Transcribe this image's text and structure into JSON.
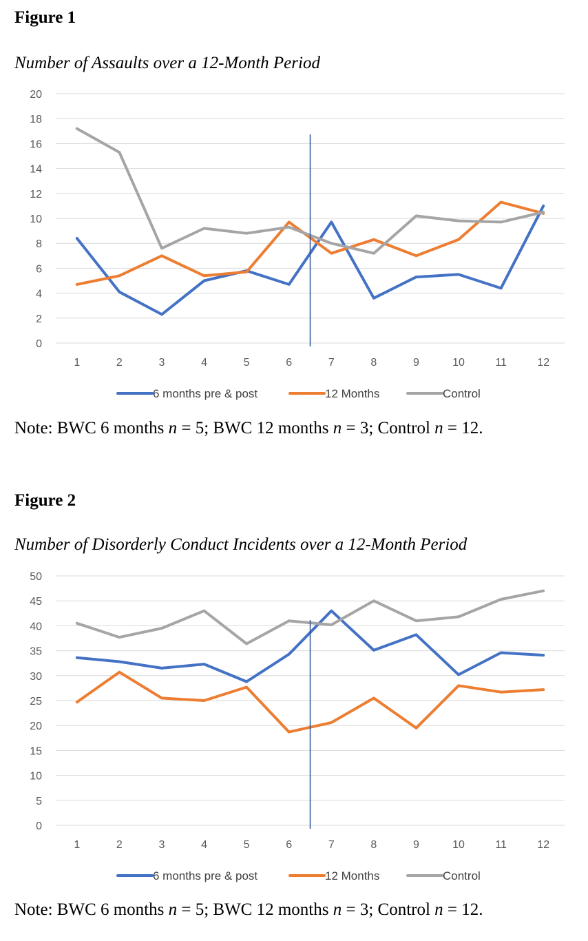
{
  "figures": [
    {
      "label": "Figure 1",
      "title": "Number of Assaults over a 12-Month Period",
      "note": {
        "prefix": "Note: BWC 6 months ",
        "n1": "n",
        "mid1": " = 5; BWC 12 months ",
        "n2": "n",
        "mid2": " = 3; Control ",
        "n3": "n",
        "end": " = 12."
      },
      "chart_data": {
        "type": "line",
        "categories": [
          "1",
          "2",
          "3",
          "4",
          "5",
          "6",
          "7",
          "8",
          "9",
          "10",
          "11",
          "12"
        ],
        "ylim": [
          0,
          20
        ],
        "yticks": [
          0,
          2,
          4,
          6,
          8,
          10,
          12,
          14,
          16,
          18,
          20
        ],
        "grid": true,
        "legend_position": "bottom",
        "marker_line": {
          "between": [
            6,
            7
          ]
        },
        "series": [
          {
            "name": "6 months pre & post",
            "color": "#4472C4",
            "values": [
              8.4,
              4.1,
              2.3,
              5.0,
              5.8,
              4.7,
              9.7,
              3.6,
              5.3,
              5.5,
              4.4,
              11.0
            ]
          },
          {
            "name": "12 Months",
            "color": "#ED7D31",
            "values": [
              4.7,
              5.4,
              7.0,
              5.4,
              5.7,
              9.7,
              7.2,
              8.3,
              7.0,
              8.3,
              11.3,
              10.4
            ]
          },
          {
            "name": "Control",
            "color": "#A5A5A5",
            "values": [
              17.2,
              15.3,
              7.6,
              9.2,
              8.8,
              9.3,
              8.0,
              7.2,
              10.2,
              9.8,
              9.7,
              10.5
            ]
          }
        ]
      }
    },
    {
      "label": "Figure 2",
      "title": "Number of Disorderly Conduct Incidents over a 12-Month Period",
      "note": {
        "prefix": "Note: BWC 6 months ",
        "n1": "n",
        "mid1": " = 5; BWC 12 months ",
        "n2": "n",
        "mid2": " = 3; Control ",
        "n3": "n",
        "end": " = 12."
      },
      "chart_data": {
        "type": "line",
        "categories": [
          "1",
          "2",
          "3",
          "4",
          "5",
          "6",
          "7",
          "8",
          "9",
          "10",
          "11",
          "12"
        ],
        "ylim": [
          0,
          50
        ],
        "yticks": [
          0,
          5,
          10,
          15,
          20,
          25,
          30,
          35,
          40,
          45,
          50
        ],
        "grid": true,
        "legend_position": "bottom",
        "marker_line": {
          "between": [
            6,
            7
          ]
        },
        "series": [
          {
            "name": "6 months pre & post",
            "color": "#4472C4",
            "values": [
              33.6,
              32.8,
              31.5,
              32.3,
              28.8,
              34.3,
              43.0,
              35.1,
              38.2,
              30.2,
              34.6,
              34.1
            ]
          },
          {
            "name": "12 Months",
            "color": "#ED7D31",
            "values": [
              24.7,
              30.7,
              25.5,
              25.0,
              27.7,
              18.7,
              20.6,
              25.5,
              19.5,
              28.0,
              26.7,
              27.2
            ]
          },
          {
            "name": "Control",
            "color": "#A5A5A5",
            "values": [
              40.5,
              37.7,
              39.5,
              43.0,
              36.4,
              41.0,
              40.2,
              45.0,
              41.0,
              41.8,
              45.3,
              47.0
            ]
          }
        ]
      }
    }
  ]
}
